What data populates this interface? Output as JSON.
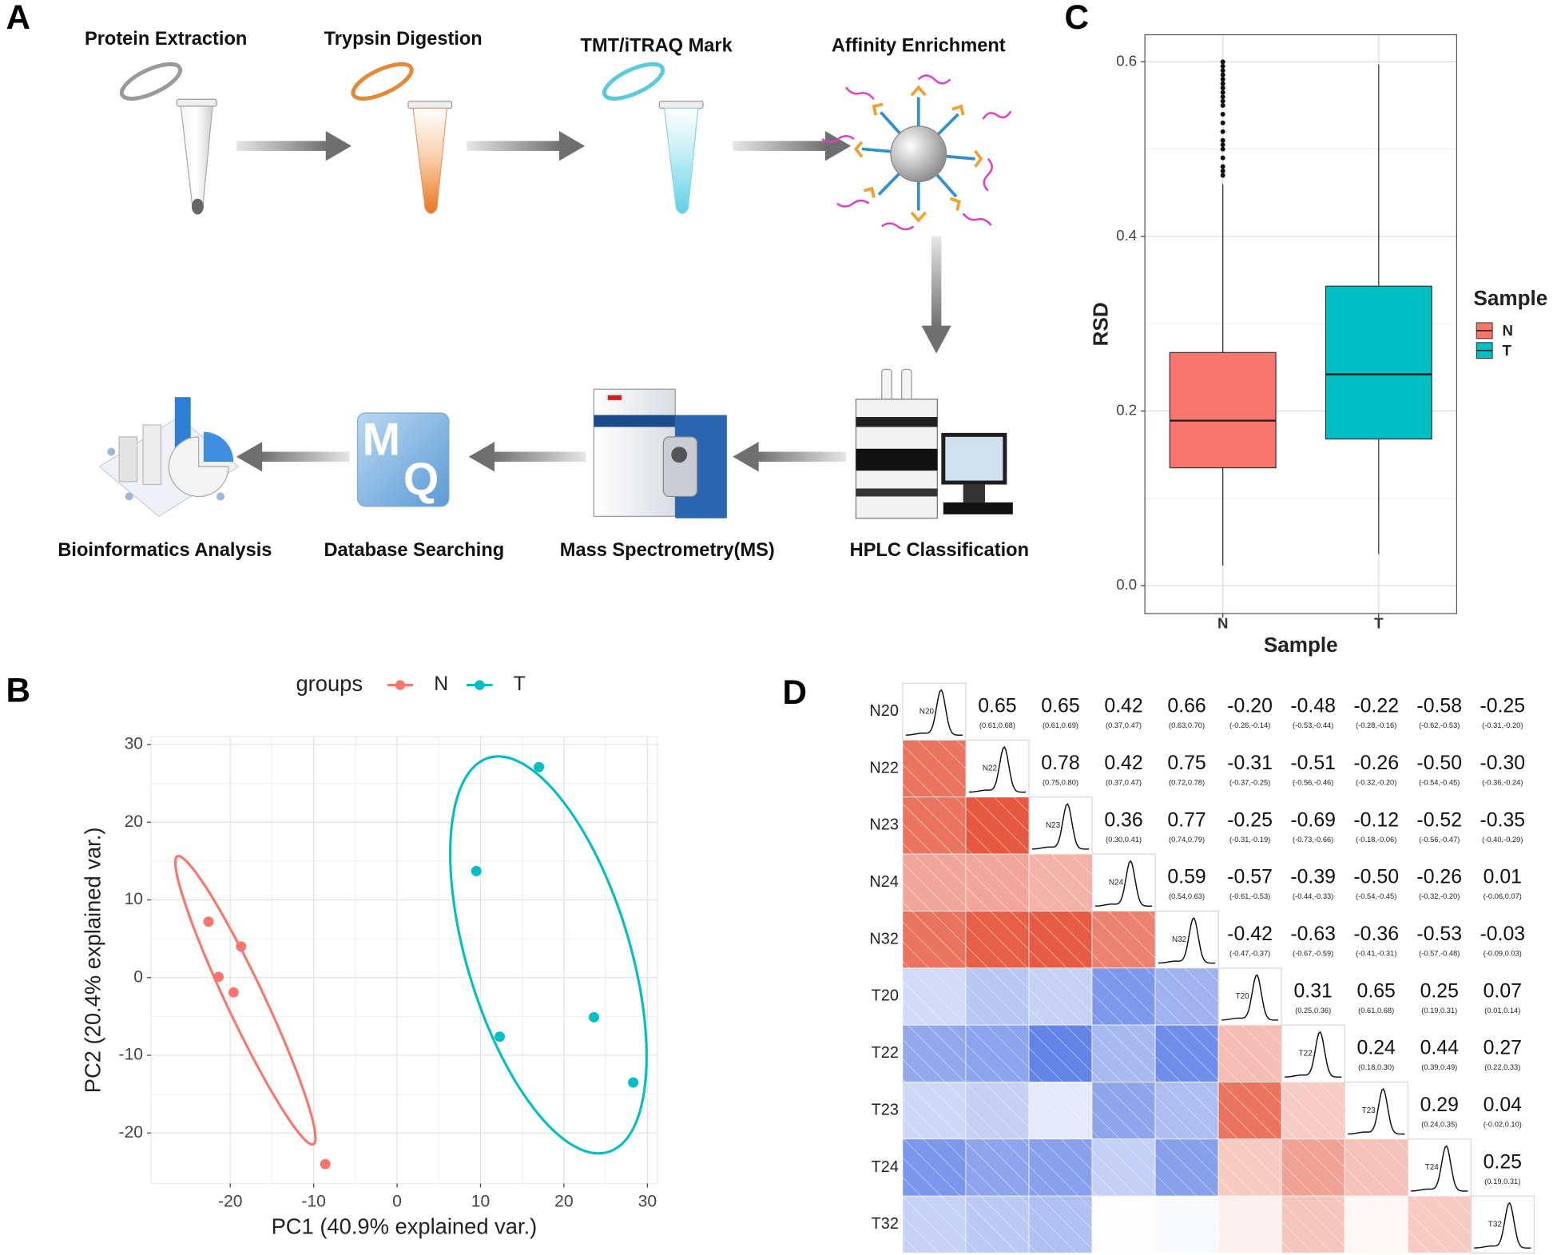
{
  "panel_labels": [
    "A",
    "B",
    "C",
    "D"
  ],
  "workflow": {
    "steps": [
      "Protein Extraction",
      "Trypsin Digestion",
      "TMT/iTRAQ Mark",
      "Affinity Enrichment",
      "HPLC Classification",
      "Mass Spectrometry(MS)",
      "Database Searching",
      "Bioinformatics Analysis"
    ],
    "logo_text": [
      "M",
      "Q"
    ]
  },
  "chart_data": [
    {
      "type": "scatter",
      "legend_title": "groups",
      "x_label": "PC1 (40.9% explained var.)",
      "y_label": "PC2 (20.4% explained var.)",
      "series": [
        {
          "name": "N",
          "color": "#F8766D",
          "x": [
            -22.6,
            -18.7,
            -21.4,
            -19.6,
            -8.6
          ],
          "y": [
            7.2,
            4.0,
            0.1,
            -1.9,
            -24.0
          ]
        },
        {
          "name": "T",
          "color": "#00BFC4",
          "x": [
            17.0,
            9.5,
            12.3,
            23.6,
            28.3
          ],
          "y": [
            27.1,
            13.7,
            -7.6,
            -5.1,
            -13.5
          ]
        }
      ],
      "xlim": [
        -29.5,
        31.2
      ],
      "xticks": [
        -20,
        -10,
        0,
        10,
        20,
        30
      ],
      "ylim": [
        -26.5,
        31
      ],
      "yticks": [
        -20,
        -10,
        0,
        10,
        20,
        30
      ],
      "grid": true,
      "legend": "top"
    },
    {
      "type": "box",
      "y_label": "RSD",
      "x_label": "Sample",
      "legend_title": "Sample",
      "categories": [
        "N",
        "T"
      ],
      "series": [
        {
          "name": "N",
          "color": "#F8766D",
          "min": 0.023,
          "q1": 0.135,
          "median": 0.189,
          "q3": 0.267,
          "max": 0.46,
          "outliers": [
            0.6,
            0.595,
            0.59,
            0.585,
            0.58,
            0.575,
            0.57,
            0.565,
            0.56,
            0.555,
            0.55,
            0.54,
            0.53,
            0.52,
            0.51,
            0.505,
            0.5,
            0.49,
            0.48,
            0.475,
            0.47
          ]
        },
        {
          "name": "T",
          "color": "#00BFC4",
          "min": 0.036,
          "q1": 0.168,
          "median": 0.242,
          "q3": 0.343,
          "max": 0.597,
          "outliers": []
        }
      ],
      "ylim": [
        -0.032,
        0.631
      ],
      "yticks": [
        {
          "value": 0,
          "label": "0.0"
        },
        0.2,
        0.4,
        0.6
      ],
      "grid": true,
      "legend": "right"
    },
    {
      "type": "correlation_matrix",
      "categories": [
        "N20",
        "N22",
        "N23",
        "N24",
        "N32",
        "T20",
        "T22",
        "T23",
        "T24",
        "T32"
      ],
      "values": [
        [
          0.65,
          0.65,
          0.42,
          0.66,
          -0.2,
          -0.48,
          -0.22,
          -0.58,
          -0.25
        ],
        [
          0.78,
          0.42,
          0.75,
          -0.31,
          -0.51,
          -0.26,
          -0.5,
          -0.3
        ],
        [
          0.36,
          0.77,
          -0.25,
          -0.69,
          -0.12,
          -0.52,
          -0.35
        ],
        [
          0.59,
          -0.57,
          -0.39,
          -0.5,
          -0.26,
          0.01
        ],
        [
          -0.42,
          -0.63,
          -0.36,
          -0.53,
          -0.03
        ],
        [
          0.31,
          0.65,
          0.25,
          0.07
        ],
        [
          0.24,
          0.44,
          0.27
        ],
        [
          0.29,
          0.04
        ],
        [
          0.25
        ],
        []
      ],
      "value_labels": [
        [
          "0.65",
          "0.65",
          "0.42",
          "0.66",
          "-0.20",
          "-0.48",
          "-0.22",
          "-0.58",
          "-0.25"
        ],
        [
          "0.78",
          "0.42",
          "0.75",
          "-0.31",
          "-0.51",
          "-0.26",
          "-0.50",
          "-0.30"
        ],
        [
          "0.36",
          "0.77",
          "-0.25",
          "-0.69",
          "-0.12",
          "-0.52",
          "-0.35"
        ],
        [
          "0.59",
          "-0.57",
          "-0.39",
          "-0.50",
          "-0.26",
          "0.01"
        ],
        [
          "-0.42",
          "-0.63",
          "-0.36",
          "-0.53",
          "-0.03"
        ],
        [
          "0.31",
          "0.65",
          "0.25",
          "0.07"
        ],
        [
          "0.24",
          "0.44",
          "0.27"
        ],
        [
          "0.29",
          "0.04"
        ],
        [
          "0.25"
        ],
        []
      ],
      "intervals": [
        [
          "(0.61,0.68)",
          "(0.61,0.69)",
          "(0.37,0.47)",
          "(0.63,0.70)",
          "(-0.26,-0.14)",
          "(-0.53,-0.44)",
          "(-0.28,-0.16)",
          "(-0.62,-0.53)",
          "(-0.31,-0.20)"
        ],
        [
          "(0.75,0.80)",
          "(0.37,0.47)",
          "(0.72,0.78)",
          "(-0.37,-0.25)",
          "(-0.56,-0.46)",
          "(-0.32,-0.20)",
          "(-0.54,-0.45)",
          "(-0.36,-0.24)"
        ],
        [
          "(0.30,0.41)",
          "(0.74,0.79)",
          "(-0.31,-0.19)",
          "(-0.73,-0.66)",
          "(-0.18,-0.06)",
          "(-0.56,-0.47)",
          "(-0.40,-0.29)"
        ],
        [
          "(0.54,0.63)",
          "(-0.61,-0.53)",
          "(-0.44,-0.33)",
          "(-0.54,-0.45)",
          "(-0.32,-0.20)",
          "(-0.06,0.07)"
        ],
        [
          "(-0.47,-0.37)",
          "(-0.67,-0.59)",
          "(-0.41,-0.31)",
          "(-0.57,-0.48)",
          "(-0.09,0.03)"
        ],
        [
          "(0.25,0.36)",
          "(0.61,0.68)",
          "(0.19,0.31)",
          "(0.01,0.14)"
        ],
        [
          "(0.18,0.30)",
          "(0.39,0.49)",
          "(0.22,0.33)"
        ],
        [
          "(0.24,0.35)",
          "(-0.02,0.10)"
        ],
        [
          "(0.19,0.31)"
        ],
        []
      ],
      "positive_color": "#E4553C",
      "negative_color": "#4A6FE3"
    }
  ]
}
